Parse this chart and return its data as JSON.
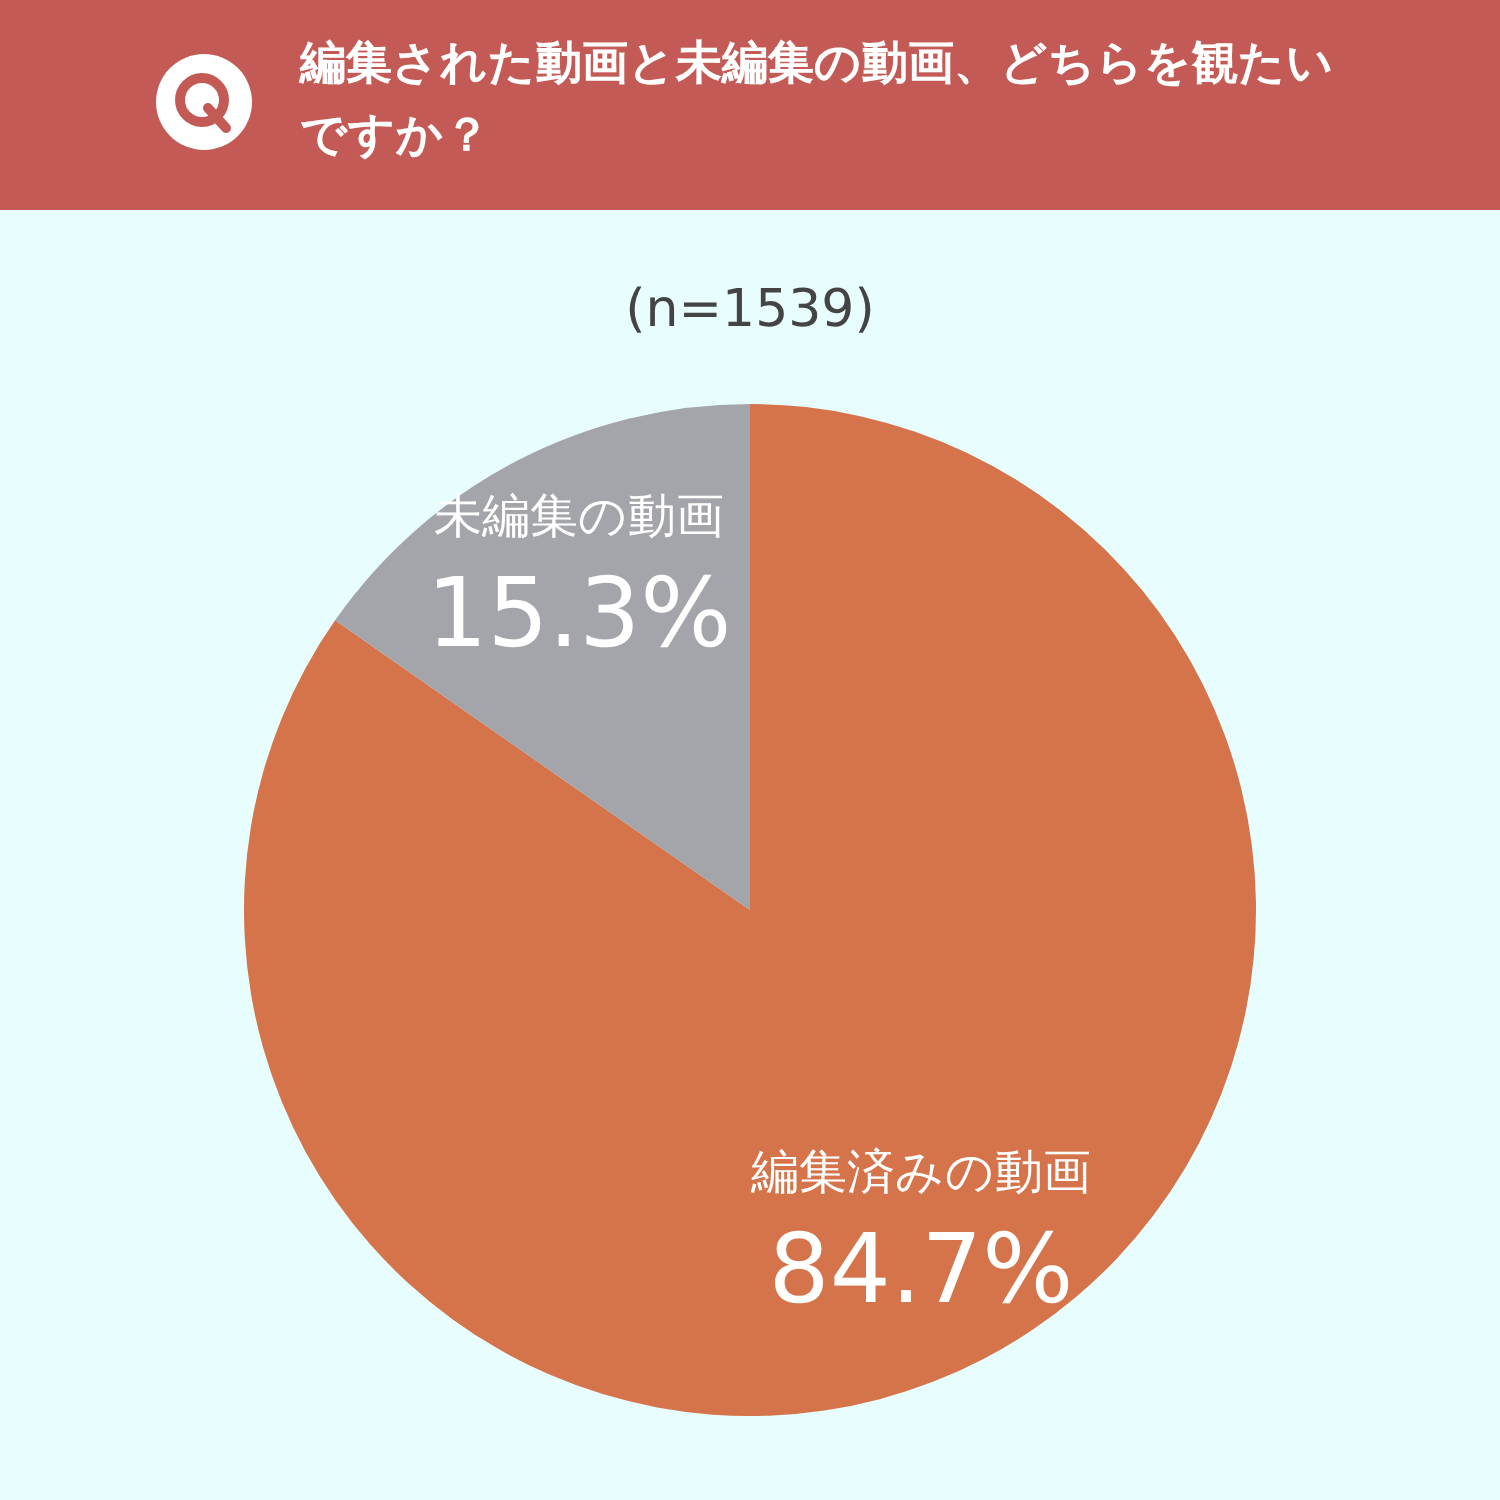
{
  "chart_data": {
    "type": "pie",
    "title": "編集された動画と未編集の動画、どちらを観たいですか？",
    "subtitle": "(n=1539)",
    "categories": [
      "編集済みの動画",
      "未編集の動画"
    ],
    "values": [
      84.7,
      15.3
    ],
    "colors": [
      "#d5734a",
      "#a3a5aa"
    ],
    "value_labels": [
      "84.7%",
      "15.3%"
    ]
  }
}
